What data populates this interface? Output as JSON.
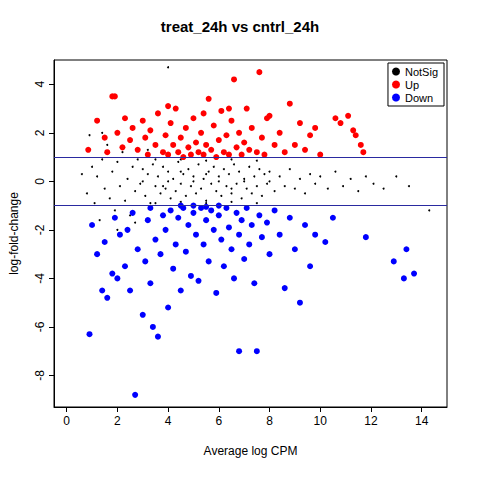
{
  "chart_data": {
    "type": "scatter",
    "title": "treat_24h vs cntrl_24h",
    "x_label": "Average log CPM",
    "y_label": "log-fold-change",
    "xlim": [
      -0.5,
      15
    ],
    "ylim": [
      -9.3,
      5.0
    ],
    "xticks": [
      0,
      2,
      4,
      6,
      8,
      10,
      12,
      14
    ],
    "yticks": [
      -8,
      -6,
      -4,
      -2,
      0,
      2,
      4
    ],
    "grid": false,
    "legend": "top-right",
    "hlines": [
      1,
      -1
    ],
    "series": [
      {
        "name": "NotSig",
        "color": "#000000",
        "marker": "dot",
        "values": [
          [
            0.6,
            0.3
          ],
          [
            0.8,
            -0.5
          ],
          [
            0.9,
            1.9
          ],
          [
            1.0,
            0.6
          ],
          [
            1.1,
            -0.9
          ],
          [
            1.2,
            0.2
          ],
          [
            1.3,
            -1.6
          ],
          [
            1.4,
            0.9
          ],
          [
            1.5,
            -0.3
          ],
          [
            1.6,
            1.5
          ],
          [
            1.7,
            -0.7
          ],
          [
            1.8,
            0.4
          ],
          [
            1.9,
            -1.2
          ],
          [
            2.0,
            0.8
          ],
          [
            2.1,
            -0.2
          ],
          [
            2.2,
            1.2
          ],
          [
            2.3,
            -0.8
          ],
          [
            2.4,
            0.1
          ],
          [
            2.5,
            -1.4
          ],
          [
            2.6,
            0.6
          ],
          [
            2.7,
            -0.4
          ],
          [
            2.8,
            0.9
          ],
          [
            2.9,
            -0.1
          ],
          [
            3.0,
            0.5
          ],
          [
            3.1,
            -0.6
          ],
          [
            3.2,
            0.3
          ],
          [
            3.3,
            -0.9
          ],
          [
            3.4,
            0.7
          ],
          [
            3.5,
            -0.2
          ],
          [
            3.6,
            0.2
          ],
          [
            3.7,
            -0.5
          ],
          [
            3.8,
            0.6
          ],
          [
            3.9,
            -0.3
          ],
          [
            4.0,
            0.4
          ],
          [
            4.1,
            -0.7
          ],
          [
            4.2,
            0.1
          ],
          [
            4.3,
            -0.4
          ],
          [
            4.4,
            0.8
          ],
          [
            4.5,
            -0.1
          ],
          [
            4.6,
            0.3
          ],
          [
            4.7,
            -0.6
          ],
          [
            4.8,
            0.5
          ],
          [
            4.9,
            -0.2
          ],
          [
            5.0,
            0.2
          ],
          [
            5.1,
            -0.5
          ],
          [
            5.2,
            0.7
          ],
          [
            5.3,
            -0.3
          ],
          [
            5.4,
            0.1
          ],
          [
            5.5,
            -0.8
          ],
          [
            5.6,
            0.4
          ],
          [
            5.7,
            -0.1
          ],
          [
            5.8,
            0.6
          ],
          [
            5.9,
            -0.4
          ],
          [
            6.0,
            0.2
          ],
          [
            6.1,
            -0.6
          ],
          [
            6.2,
            0.5
          ],
          [
            6.3,
            -0.2
          ],
          [
            6.4,
            0.3
          ],
          [
            6.5,
            -0.5
          ],
          [
            6.6,
            0.7
          ],
          [
            6.7,
            -0.1
          ],
          [
            6.8,
            0.4
          ],
          [
            6.9,
            -0.7
          ],
          [
            7.0,
            0.1
          ],
          [
            7.1,
            -0.3
          ],
          [
            7.2,
            0.6
          ],
          [
            7.3,
            -0.5
          ],
          [
            7.4,
            0.2
          ],
          [
            7.5,
            -0.2
          ],
          [
            7.6,
            0.5
          ],
          [
            7.7,
            -0.6
          ],
          [
            7.8,
            0.3
          ],
          [
            7.9,
            -0.1
          ],
          [
            8.0,
            0.4
          ],
          [
            8.2,
            -0.4
          ],
          [
            8.4,
            0.2
          ],
          [
            8.6,
            -0.2
          ],
          [
            8.8,
            0.5
          ],
          [
            9.0,
            -0.3
          ],
          [
            9.2,
            0.1
          ],
          [
            9.4,
            -0.5
          ],
          [
            9.6,
            0.3
          ],
          [
            9.8,
            -0.1
          ],
          [
            10.0,
            0.2
          ],
          [
            10.3,
            -0.3
          ],
          [
            10.6,
            0.4
          ],
          [
            10.9,
            -0.2
          ],
          [
            11.2,
            0.1
          ],
          [
            11.5,
            -0.4
          ],
          [
            11.8,
            0.2
          ],
          [
            12.1,
            -0.1
          ],
          [
            12.5,
            -0.3
          ],
          [
            13.0,
            0.2
          ],
          [
            13.5,
            -0.2
          ],
          [
            14.3,
            -1.2
          ],
          [
            3.5,
            0.9
          ],
          [
            4.5,
            0.9
          ],
          [
            5.5,
            0.85
          ],
          [
            6.5,
            0.9
          ],
          [
            7.5,
            0.85
          ],
          [
            3.5,
            -0.9
          ],
          [
            4.5,
            -0.85
          ],
          [
            5.5,
            -0.9
          ],
          [
            6.5,
            -0.85
          ],
          [
            7.5,
            -0.9
          ],
          [
            2.0,
            -2.0
          ],
          [
            1.4,
            2.0
          ],
          [
            3.2,
            1.3
          ],
          [
            2.7,
            -1.7
          ],
          [
            4.0,
            4.7
          ],
          [
            5.0,
            0.0
          ],
          [
            6.0,
            0.0
          ],
          [
            4.0,
            0.0
          ],
          [
            7.0,
            0.0
          ],
          [
            3.0,
            0.0
          ],
          [
            8.0,
            0.0
          ],
          [
            5.5,
            0.3
          ],
          [
            6.5,
            -0.3
          ],
          [
            4.5,
            0.4
          ],
          [
            3.8,
            -0.2
          ]
        ]
      },
      {
        "name": "Up",
        "color": "#ff0000",
        "marker": "circle",
        "values": [
          [
            0.85,
            1.3
          ],
          [
            1.2,
            2.5
          ],
          [
            1.5,
            1.8
          ],
          [
            1.6,
            1.2
          ],
          [
            1.8,
            3.5
          ],
          [
            1.9,
            3.5
          ],
          [
            2.0,
            2.0
          ],
          [
            2.2,
            1.4
          ],
          [
            2.3,
            2.6
          ],
          [
            2.5,
            1.7
          ],
          [
            2.6,
            2.2
          ],
          [
            2.8,
            1.3
          ],
          [
            3.0,
            2.5
          ],
          [
            3.1,
            1.8
          ],
          [
            3.2,
            1.1
          ],
          [
            3.3,
            2.1
          ],
          [
            3.5,
            1.5
          ],
          [
            3.6,
            2.8
          ],
          [
            3.8,
            1.2
          ],
          [
            3.9,
            1.9
          ],
          [
            4.0,
            1.1
          ],
          [
            4.1,
            2.4
          ],
          [
            4.2,
            1.5
          ],
          [
            4.3,
            3.0
          ],
          [
            4.4,
            1.2
          ],
          [
            4.5,
            1.8
          ],
          [
            4.6,
            1.0
          ],
          [
            4.7,
            2.2
          ],
          [
            4.8,
            1.4
          ],
          [
            4.9,
            1.1
          ],
          [
            5.0,
            2.6
          ],
          [
            5.1,
            1.6
          ],
          [
            5.2,
            1.2
          ],
          [
            5.3,
            2.0
          ],
          [
            5.4,
            1.1
          ],
          [
            5.5,
            1.5
          ],
          [
            5.6,
            3.4
          ],
          [
            5.7,
            1.3
          ],
          [
            5.8,
            2.3
          ],
          [
            5.9,
            1.0
          ],
          [
            6.0,
            1.7
          ],
          [
            6.1,
            2.9
          ],
          [
            6.2,
            1.2
          ],
          [
            6.3,
            1.9
          ],
          [
            6.4,
            1.1
          ],
          [
            6.5,
            2.5
          ],
          [
            6.6,
            4.2
          ],
          [
            6.7,
            1.4
          ],
          [
            6.8,
            2.0
          ],
          [
            6.9,
            1.1
          ],
          [
            7.0,
            1.6
          ],
          [
            7.1,
            3.0
          ],
          [
            7.2,
            1.3
          ],
          [
            7.3,
            2.2
          ],
          [
            7.5,
            1.2
          ],
          [
            7.6,
            4.5
          ],
          [
            7.7,
            1.8
          ],
          [
            7.8,
            1.1
          ],
          [
            8.0,
            2.7
          ],
          [
            8.2,
            1.5
          ],
          [
            8.4,
            2.0
          ],
          [
            8.6,
            1.2
          ],
          [
            8.8,
            3.2
          ],
          [
            9.0,
            1.5
          ],
          [
            9.2,
            2.4
          ],
          [
            9.4,
            1.3
          ],
          [
            9.6,
            1.9
          ],
          [
            9.8,
            2.2
          ],
          [
            10.0,
            1.1
          ],
          [
            10.6,
            2.6
          ],
          [
            10.8,
            2.4
          ],
          [
            11.1,
            2.7
          ],
          [
            11.3,
            2.1
          ],
          [
            11.4,
            1.9
          ],
          [
            11.6,
            1.5
          ],
          [
            11.7,
            1.2
          ],
          [
            6.4,
            3.0
          ],
          [
            7.9,
            2.6
          ],
          [
            5.4,
            2.8
          ],
          [
            4.0,
            3.1
          ]
        ]
      },
      {
        "name": "Down",
        "color": "#0000ff",
        "marker": "circle",
        "values": [
          [
            0.9,
            -6.3
          ],
          [
            1.0,
            -1.8
          ],
          [
            1.2,
            -3.0
          ],
          [
            1.4,
            -4.5
          ],
          [
            1.5,
            -2.5
          ],
          [
            1.6,
            -4.8
          ],
          [
            1.8,
            -3.8
          ],
          [
            1.9,
            -1.5
          ],
          [
            2.0,
            -4.0
          ],
          [
            2.1,
            -2.2
          ],
          [
            2.3,
            -3.5
          ],
          [
            2.4,
            -2.0
          ],
          [
            2.5,
            -4.5
          ],
          [
            2.6,
            -1.3
          ],
          [
            2.7,
            -8.8
          ],
          [
            2.8,
            -2.8
          ],
          [
            3.0,
            -5.5
          ],
          [
            3.1,
            -3.3
          ],
          [
            3.2,
            -1.6
          ],
          [
            3.3,
            -4.2
          ],
          [
            3.4,
            -6.0
          ],
          [
            3.5,
            -2.4
          ],
          [
            3.6,
            -6.4
          ],
          [
            3.7,
            -3.0
          ],
          [
            3.8,
            -1.4
          ],
          [
            3.9,
            -2.0
          ],
          [
            4.0,
            -5.2
          ],
          [
            4.1,
            -1.2
          ],
          [
            4.2,
            -3.6
          ],
          [
            4.3,
            -2.6
          ],
          [
            4.4,
            -1.5
          ],
          [
            4.5,
            -4.5
          ],
          [
            4.6,
            -1.1
          ],
          [
            4.7,
            -2.9
          ],
          [
            4.8,
            -1.8
          ],
          [
            4.9,
            -3.9
          ],
          [
            5.0,
            -1.3
          ],
          [
            5.1,
            -2.2
          ],
          [
            5.2,
            -4.1
          ],
          [
            5.3,
            -1.1
          ],
          [
            5.4,
            -2.6
          ],
          [
            5.5,
            -1.6
          ],
          [
            5.6,
            -3.3
          ],
          [
            5.7,
            -1.2
          ],
          [
            5.8,
            -2.0
          ],
          [
            5.9,
            -4.6
          ],
          [
            6.0,
            -1.4
          ],
          [
            6.1,
            -2.4
          ],
          [
            6.2,
            -3.5
          ],
          [
            6.3,
            -1.1
          ],
          [
            6.4,
            -1.9
          ],
          [
            6.5,
            -2.8
          ],
          [
            6.6,
            -4.0
          ],
          [
            6.7,
            -1.3
          ],
          [
            6.8,
            -2.2
          ],
          [
            6.9,
            -1.6
          ],
          [
            7.0,
            -3.2
          ],
          [
            7.1,
            -1.1
          ],
          [
            7.2,
            -2.6
          ],
          [
            7.3,
            -1.8
          ],
          [
            7.4,
            -4.2
          ],
          [
            7.5,
            -7.0
          ],
          [
            7.6,
            -1.4
          ],
          [
            7.7,
            -2.3
          ],
          [
            7.9,
            -1.7
          ],
          [
            8.0,
            -3.0
          ],
          [
            8.2,
            -1.2
          ],
          [
            8.4,
            -2.2
          ],
          [
            8.6,
            -4.4
          ],
          [
            8.8,
            -1.5
          ],
          [
            9.0,
            -2.8
          ],
          [
            9.2,
            -5.0
          ],
          [
            9.4,
            -1.8
          ],
          [
            9.6,
            -3.5
          ],
          [
            9.8,
            -2.2
          ],
          [
            10.2,
            -2.5
          ],
          [
            10.5,
            -1.5
          ],
          [
            11.8,
            -2.3
          ],
          [
            12.9,
            -3.3
          ],
          [
            13.3,
            -4.0
          ],
          [
            13.4,
            -2.8
          ],
          [
            13.7,
            -3.8
          ],
          [
            6.8,
            -7.0
          ],
          [
            4.5,
            -1.0
          ],
          [
            5.0,
            -1.0
          ],
          [
            5.5,
            -1.05
          ],
          [
            6.0,
            -1.0
          ],
          [
            3.3,
            -1.1
          ]
        ]
      }
    ]
  }
}
